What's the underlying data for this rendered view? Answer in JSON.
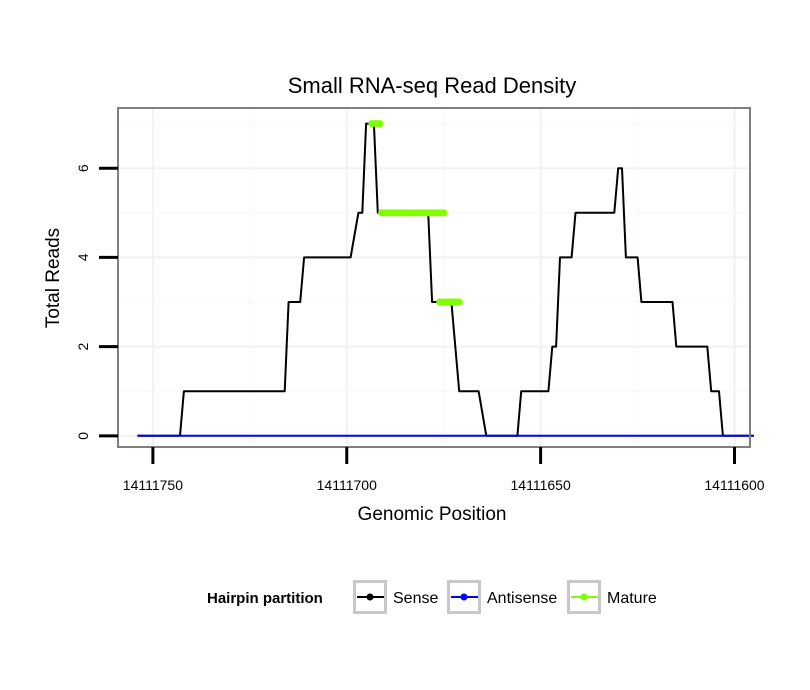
{
  "chart_data": {
    "type": "line",
    "title": "Small RNA-seq Read Density",
    "xlabel": "Genomic Position",
    "ylabel": "Total Reads",
    "x_reversed": true,
    "xlim": [
      14111759,
      14111596
    ],
    "ylim": [
      -0.25,
      7.35
    ],
    "xticks": [
      14111750,
      14111700,
      14111650,
      14111600
    ],
    "xtick_labels": [
      "14111750",
      "14111700",
      "14111650",
      "14111600"
    ],
    "yticks": [
      0,
      2,
      4,
      6
    ],
    "ytick_labels": [
      "0",
      "2",
      "4",
      "6"
    ],
    "grid": true,
    "legend": {
      "title": "Hairpin partition",
      "position": "bottom",
      "entries": [
        {
          "label": "Sense",
          "color": "#000000"
        },
        {
          "label": "Antisense",
          "color": "#0000ff"
        },
        {
          "label": "Mature",
          "color": "#7fff00"
        }
      ]
    },
    "series": [
      {
        "name": "Sense",
        "color": "#000000",
        "points": [
          [
            14111754,
            0
          ],
          [
            14111743,
            0
          ],
          [
            14111742,
            1
          ],
          [
            14111731,
            1
          ],
          [
            14111716,
            1
          ],
          [
            14111715,
            3
          ],
          [
            14111712,
            3
          ],
          [
            14111711,
            4
          ],
          [
            14111699,
            4
          ],
          [
            14111697,
            5
          ],
          [
            14111696,
            5
          ],
          [
            14111695,
            7
          ],
          [
            14111693,
            7
          ],
          [
            14111692,
            5
          ],
          [
            14111681,
            5
          ],
          [
            14111679,
            5
          ],
          [
            14111678,
            3
          ],
          [
            14111673,
            3
          ],
          [
            14111671,
            1
          ],
          [
            14111666,
            1
          ],
          [
            14111664,
            0
          ],
          [
            14111656,
            0
          ],
          [
            14111655,
            1
          ],
          [
            14111648,
            1
          ],
          [
            14111647,
            2
          ],
          [
            14111646,
            2
          ],
          [
            14111645,
            4
          ],
          [
            14111642,
            4
          ],
          [
            14111641,
            5
          ],
          [
            14111631,
            5
          ],
          [
            14111630,
            6
          ],
          [
            14111629,
            6
          ],
          [
            14111628,
            4
          ],
          [
            14111625,
            4
          ],
          [
            14111624,
            3
          ],
          [
            14111616,
            3
          ],
          [
            14111615,
            2
          ],
          [
            14111607,
            2
          ],
          [
            14111606,
            1
          ],
          [
            14111604,
            1
          ],
          [
            14111603,
            0
          ],
          [
            14111595,
            0
          ]
        ]
      },
      {
        "name": "Antisense",
        "color": "#0000ff",
        "points": [
          [
            14111754,
            0
          ],
          [
            14111595,
            0
          ]
        ]
      },
      {
        "name": "Mature",
        "color": "#7fff00",
        "segments": [
          [
            [
              14111693.5,
              7
            ],
            [
              14111691.5,
              7
            ]
          ],
          [
            [
              14111691,
              5
            ],
            [
              14111675,
              5
            ]
          ],
          [
            [
              14111676,
              3
            ],
            [
              14111671,
              3
            ]
          ]
        ]
      }
    ]
  }
}
